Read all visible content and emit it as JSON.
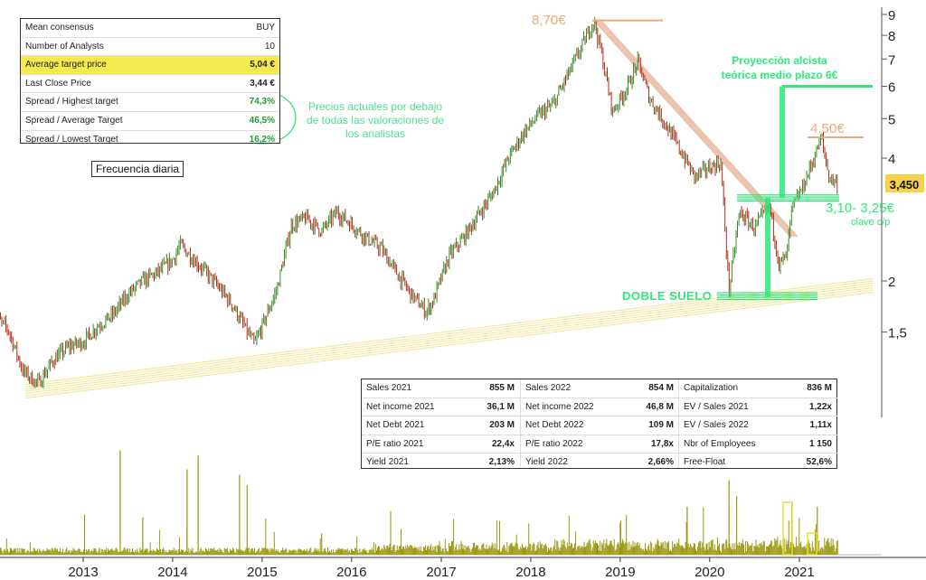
{
  "consensus_table": {
    "rows": [
      {
        "label": "Mean consensus",
        "value": "BUY",
        "highlight": false,
        "style": "plain"
      },
      {
        "label": "Number of Analysts",
        "value": "10",
        "highlight": false,
        "style": "plain"
      },
      {
        "label": "Average target price",
        "value": "5,04 €",
        "highlight": true,
        "style": "bold"
      },
      {
        "label": "Last Close Price",
        "value": "3,44 €",
        "highlight": false,
        "style": "bold"
      },
      {
        "label": "Spread / Highest target",
        "value": "74,3%",
        "highlight": false,
        "style": "green"
      },
      {
        "label": "Spread / Average Target",
        "value": "46,5%",
        "highlight": false,
        "style": "green"
      },
      {
        "label": "Spread / Lowest Target",
        "value": "16,2%",
        "highlight": false,
        "style": "green"
      }
    ]
  },
  "annotations": {
    "frequency": "Frecuencia diaria",
    "analyst_note": [
      "Precios actuales por debajo",
      "de todas las valoraciones de",
      "los analistas"
    ],
    "peak_label": "8,70€",
    "recent_high_label": "4,50€",
    "projection": [
      "Proyección alcista",
      "teórica medio plazo 6€"
    ],
    "support_label": "3,10- 3,25€",
    "support_sub": "clave c/p",
    "double_bottom": "DOBLE SUELO",
    "last_price_badge": "3,450"
  },
  "fundamentals": {
    "columns": [
      [
        {
          "label": "Sales 2021",
          "value": "855 M"
        },
        {
          "label": "Net income 2021",
          "value": "36,1 M"
        },
        {
          "label": "Net Debt 2021",
          "value": "203 M"
        },
        {
          "label": "P/E ratio 2021",
          "value": "22,4x"
        },
        {
          "label": "Yield 2021",
          "value": "2,13%"
        }
      ],
      [
        {
          "label": "Sales 2022",
          "value": "854 M"
        },
        {
          "label": "Net income 2022",
          "value": "46,8 M"
        },
        {
          "label": "Net Debt 2022",
          "value": "109 M"
        },
        {
          "label": "P/E ratio 2022",
          "value": "17,8x"
        },
        {
          "label": "Yield 2022",
          "value": "2,66%"
        }
      ],
      [
        {
          "label": "Capitalization",
          "value": "836 M"
        },
        {
          "label": "EV / Sales 2021",
          "value": "1,22x"
        },
        {
          "label": "EV / Sales 2022",
          "value": "1,11x"
        },
        {
          "label": "Nbr of Employees",
          "value": "1 150"
        },
        {
          "label": "Free-Float",
          "value": "52,6%"
        }
      ]
    ]
  },
  "colors": {
    "candle_up": "#3a8a2a",
    "candle_down": "#b52a1a",
    "volume": "#9a9a10",
    "support_trend": "#f2e9a3",
    "resistance_trend": "#e8b59a",
    "projection": "#2ee878",
    "orange_label": "#f0a878",
    "badge": "#f5d24a"
  },
  "chart_data": {
    "type": "candlestick",
    "y_scale": "log",
    "ylim": [
      1.0,
      9.3
    ],
    "y_ticks": [
      "9",
      "8",
      "7",
      "6",
      "5",
      "4",
      "2",
      "1,5"
    ],
    "y_tick_values": [
      9,
      8,
      7,
      6,
      5,
      4,
      2,
      1.5
    ],
    "x_ticks": [
      "2013",
      "2014",
      "2015",
      "2016",
      "2017",
      "2018",
      "2019",
      "2020",
      "2021"
    ],
    "x_tick_dates": [
      "2013-01-01",
      "2014-01-01",
      "2015-01-01",
      "2016-01-01",
      "2017-01-01",
      "2018-01-01",
      "2019-01-01",
      "2020-01-01",
      "2021-01-01"
    ],
    "series": [
      {
        "type": "line",
        "points": [
          [
            "2012-01-01",
            1.65
          ],
          [
            "2012-03-01",
            1.52
          ],
          [
            "2012-05-01",
            1.2
          ],
          [
            "2012-07-01",
            1.12
          ],
          [
            "2012-09-01",
            1.28
          ],
          [
            "2012-11-01",
            1.38
          ],
          [
            "2013-01-01",
            1.42
          ],
          [
            "2013-03-01",
            1.55
          ],
          [
            "2013-05-01",
            1.65
          ],
          [
            "2013-07-01",
            1.85
          ],
          [
            "2013-09-01",
            2.0
          ],
          [
            "2013-11-01",
            2.1
          ],
          [
            "2014-01-01",
            2.25
          ],
          [
            "2014-02-01",
            2.45
          ],
          [
            "2014-03-01",
            2.35
          ],
          [
            "2014-05-01",
            2.15
          ],
          [
            "2014-07-01",
            1.95
          ],
          [
            "2014-09-01",
            1.75
          ],
          [
            "2014-11-01",
            1.5
          ],
          [
            "2014-12-01",
            1.4
          ],
          [
            "2015-01-01",
            1.55
          ],
          [
            "2015-03-01",
            1.9
          ],
          [
            "2015-05-01",
            2.75
          ],
          [
            "2015-07-01",
            2.85
          ],
          [
            "2015-09-01",
            2.65
          ],
          [
            "2015-11-01",
            2.95
          ],
          [
            "2016-01-01",
            2.75
          ],
          [
            "2016-03-01",
            2.55
          ],
          [
            "2016-05-01",
            2.4
          ],
          [
            "2016-07-01",
            2.1
          ],
          [
            "2016-09-01",
            1.85
          ],
          [
            "2016-11-01",
            1.68
          ],
          [
            "2016-12-01",
            1.8
          ],
          [
            "2017-02-01",
            2.3
          ],
          [
            "2017-04-01",
            2.55
          ],
          [
            "2017-06-01",
            2.9
          ],
          [
            "2017-08-01",
            3.3
          ],
          [
            "2017-10-01",
            4.0
          ],
          [
            "2017-12-01",
            4.6
          ],
          [
            "2018-02-01",
            5.1
          ],
          [
            "2018-04-01",
            5.4
          ],
          [
            "2018-06-01",
            6.4
          ],
          [
            "2018-08-01",
            7.6
          ],
          [
            "2018-09-15",
            8.7
          ],
          [
            "2018-10-15",
            7.3
          ],
          [
            "2018-12-01",
            5.2
          ],
          [
            "2019-02-01",
            6.0
          ],
          [
            "2019-03-15",
            6.9
          ],
          [
            "2019-05-01",
            5.6
          ],
          [
            "2019-07-01",
            4.9
          ],
          [
            "2019-09-01",
            4.2
          ],
          [
            "2019-11-01",
            3.6
          ],
          [
            "2020-01-01",
            3.8
          ],
          [
            "2020-02-15",
            3.9
          ],
          [
            "2020-03-20",
            1.9
          ],
          [
            "2020-05-01",
            2.95
          ],
          [
            "2020-07-01",
            2.7
          ],
          [
            "2020-09-01",
            3.05
          ],
          [
            "2020-10-10",
            2.2
          ],
          [
            "2020-11-10",
            2.3
          ],
          [
            "2020-12-01",
            3.0
          ],
          [
            "2021-01-15",
            3.4
          ],
          [
            "2021-03-01",
            4.0
          ],
          [
            "2021-04-01",
            4.5
          ],
          [
            "2021-05-01",
            3.6
          ],
          [
            "2021-06-10",
            3.45
          ]
        ]
      }
    ],
    "volume": {
      "range": [
        "2012-01-01",
        "2021-06-10"
      ],
      "spikes": [
        [
          "2013-06-01",
          0.98
        ],
        [
          "2013-09-01",
          0.35
        ],
        [
          "2014-03-01",
          0.8
        ],
        [
          "2014-04-15",
          0.93
        ],
        [
          "2014-10-01",
          0.75
        ],
        [
          "2014-11-01",
          0.65
        ],
        [
          "2015-09-01",
          0.2
        ],
        [
          "2019-01-01",
          0.3
        ],
        [
          "2019-10-01",
          0.45
        ],
        [
          "2020-03-20",
          0.7
        ],
        [
          "2020-04-20",
          0.55
        ],
        [
          "2020-12-01",
          0.5
        ],
        [
          "2021-03-15",
          0.45
        ]
      ]
    }
  }
}
